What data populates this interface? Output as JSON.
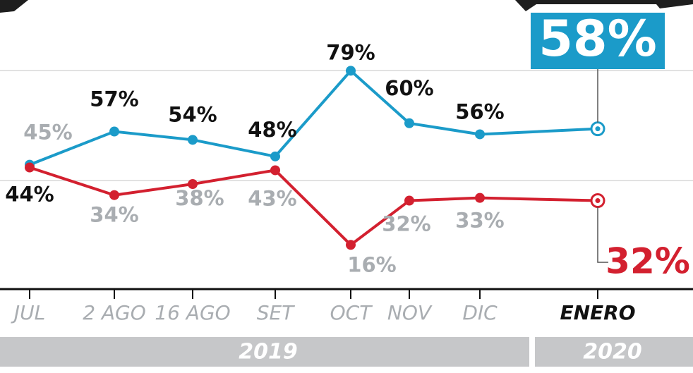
{
  "chart_data": {
    "type": "line",
    "categories": [
      "JUL",
      "2 AGO",
      "16 AGO",
      "SET",
      "OCT",
      "NOV",
      "DIC",
      "ENERO"
    ],
    "series": [
      {
        "color": "#1b9bc9",
        "values": [
          45,
          57,
          54,
          48,
          79,
          60,
          56,
          58
        ],
        "value_labels": [
          "45%",
          "57%",
          "54%",
          "48%",
          "79%",
          "60%",
          "56%",
          "58%"
        ]
      },
      {
        "color": "#d3202f",
        "values": [
          44,
          34,
          38,
          43,
          16,
          32,
          33,
          32
        ],
        "value_labels": [
          "44%",
          "34%",
          "38%",
          "43%",
          "16%",
          "32%",
          "33%",
          "32%"
        ]
      }
    ],
    "years": [
      "2019",
      "2020"
    ],
    "ylim": [
      0,
      100
    ]
  }
}
